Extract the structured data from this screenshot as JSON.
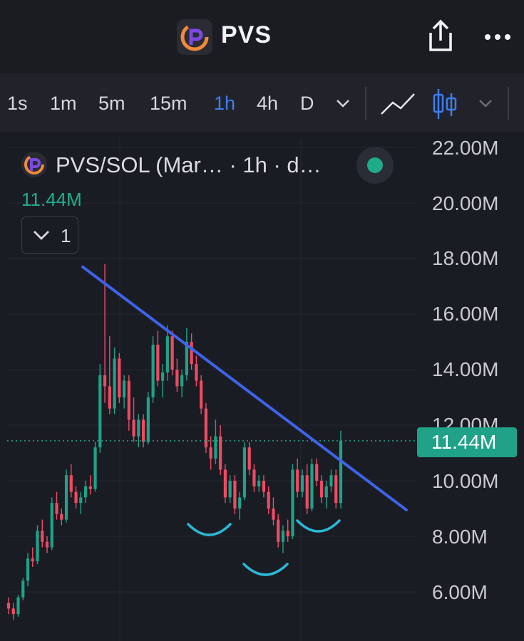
{
  "header": {
    "title": "PVS",
    "icons": [
      "app-logo",
      "share-icon",
      "more-icon"
    ]
  },
  "toolbar": {
    "timeframes": [
      "1s",
      "1m",
      "5m",
      "15m",
      "1h",
      "4h",
      "D"
    ],
    "active_timeframe": "1h",
    "chart_type_icons": [
      "line-chart-icon",
      "candlestick-icon"
    ],
    "accent": "#3d7df3"
  },
  "legend": {
    "title": "PVS/SOL (Mar… · 1h · d…",
    "last_price": "11.44M",
    "collapse_count": "1",
    "status_color": "#1fab8a"
  },
  "price_badge": "11.44M",
  "colors": {
    "up": "#1fa287",
    "down": "#f04a63",
    "trendline": "#3f63e8",
    "annotation": "#2bb8d6"
  },
  "chart_data": {
    "type": "candlestick",
    "title": "",
    "xlabel": "",
    "ylabel": "",
    "y_ticks": [
      "22.00M",
      "20.00M",
      "18.00M",
      "16.00M",
      "14.00M",
      "12.00M",
      "10.00M",
      "8.00M",
      "6.00M"
    ],
    "ylim": [
      4.8,
      22.5
    ],
    "last_price": 11.44,
    "ohlc": [
      [
        5.6,
        5.8,
        5.2,
        5.4
      ],
      [
        5.4,
        5.6,
        5.0,
        5.2
      ],
      [
        5.2,
        5.9,
        5.1,
        5.8
      ],
      [
        5.8,
        6.5,
        5.7,
        6.4
      ],
      [
        6.4,
        7.4,
        6.2,
        7.2
      ],
      [
        7.2,
        7.6,
        6.9,
        7.1
      ],
      [
        7.1,
        8.4,
        7.0,
        8.2
      ],
      [
        8.2,
        8.6,
        7.6,
        7.8
      ],
      [
        7.8,
        8.0,
        7.4,
        7.6
      ],
      [
        7.6,
        9.4,
        7.5,
        9.2
      ],
      [
        9.2,
        9.6,
        8.6,
        8.8
      ],
      [
        8.8,
        9.0,
        8.4,
        8.6
      ],
      [
        8.6,
        10.4,
        8.5,
        10.2
      ],
      [
        10.2,
        10.6,
        9.4,
        9.6
      ],
      [
        9.6,
        9.8,
        9.0,
        9.2
      ],
      [
        9.2,
        9.6,
        8.8,
        9.4
      ],
      [
        9.4,
        10.0,
        9.2,
        9.8
      ],
      [
        9.8,
        10.2,
        9.5,
        9.7
      ],
      [
        9.7,
        11.4,
        9.6,
        11.2
      ],
      [
        11.2,
        14.2,
        11.0,
        13.8
      ],
      [
        13.8,
        17.8,
        12.8,
        13.4
      ],
      [
        13.4,
        15.2,
        12.4,
        12.6
      ],
      [
        12.6,
        14.8,
        12.4,
        14.4
      ],
      [
        14.4,
        14.6,
        12.8,
        13.0
      ],
      [
        13.0,
        13.8,
        12.6,
        13.6
      ],
      [
        13.6,
        13.8,
        11.8,
        12.2
      ],
      [
        12.2,
        13.0,
        11.4,
        11.6
      ],
      [
        11.6,
        12.4,
        11.2,
        12.2
      ],
      [
        12.2,
        12.4,
        11.2,
        11.4
      ],
      [
        11.4,
        13.2,
        11.3,
        13.0
      ],
      [
        13.0,
        15.2,
        12.8,
        14.9
      ],
      [
        14.9,
        15.4,
        13.4,
        13.6
      ],
      [
        13.6,
        14.2,
        13.0,
        13.9
      ],
      [
        13.9,
        15.6,
        13.6,
        15.2
      ],
      [
        15.2,
        15.4,
        13.8,
        14.0
      ],
      [
        14.0,
        14.4,
        13.2,
        13.4
      ],
      [
        13.4,
        14.0,
        13.0,
        13.8
      ],
      [
        13.8,
        15.5,
        13.6,
        15.0
      ],
      [
        15.0,
        15.3,
        14.0,
        14.2
      ],
      [
        14.2,
        14.5,
        13.4,
        13.6
      ],
      [
        13.6,
        13.8,
        12.4,
        12.6
      ],
      [
        12.6,
        12.8,
        11.0,
        11.2
      ],
      [
        11.2,
        11.6,
        10.4,
        10.8
      ],
      [
        10.8,
        12.2,
        10.6,
        11.6
      ],
      [
        11.6,
        12.0,
        10.2,
        10.4
      ],
      [
        10.4,
        10.6,
        9.2,
        9.4
      ],
      [
        9.4,
        10.2,
        9.2,
        10.0
      ],
      [
        10.0,
        10.2,
        8.8,
        9.0
      ],
      [
        9.0,
        9.6,
        8.6,
        9.4
      ],
      [
        9.4,
        11.4,
        9.3,
        11.2
      ],
      [
        11.2,
        11.4,
        10.2,
        10.4
      ],
      [
        10.4,
        10.6,
        9.6,
        9.8
      ],
      [
        9.8,
        10.2,
        9.6,
        10.0
      ],
      [
        10.0,
        10.2,
        9.4,
        9.6
      ],
      [
        9.6,
        9.8,
        8.8,
        9.0
      ],
      [
        9.0,
        9.4,
        8.4,
        8.6
      ],
      [
        8.6,
        8.8,
        7.6,
        7.8
      ],
      [
        7.8,
        8.4,
        7.4,
        8.2
      ],
      [
        8.2,
        8.6,
        7.8,
        8.0
      ],
      [
        8.0,
        10.6,
        7.9,
        10.4
      ],
      [
        10.4,
        10.8,
        9.4,
        9.6
      ],
      [
        9.6,
        10.4,
        9.4,
        10.2
      ],
      [
        10.2,
        10.6,
        8.8,
        9.0
      ],
      [
        9.0,
        10.8,
        8.9,
        10.6
      ],
      [
        10.6,
        10.8,
        9.8,
        10.0
      ],
      [
        10.0,
        10.2,
        9.2,
        9.4
      ],
      [
        9.4,
        10.0,
        9.0,
        9.8
      ],
      [
        9.8,
        10.4,
        9.6,
        10.2
      ],
      [
        10.2,
        10.4,
        9.0,
        9.2
      ],
      [
        9.2,
        11.8,
        9.0,
        11.44
      ]
    ],
    "trendline": [
      [
        17.7,
        8.95
      ]
    ],
    "annotations": [
      "left-shoulder",
      "head",
      "right-shoulder"
    ]
  }
}
